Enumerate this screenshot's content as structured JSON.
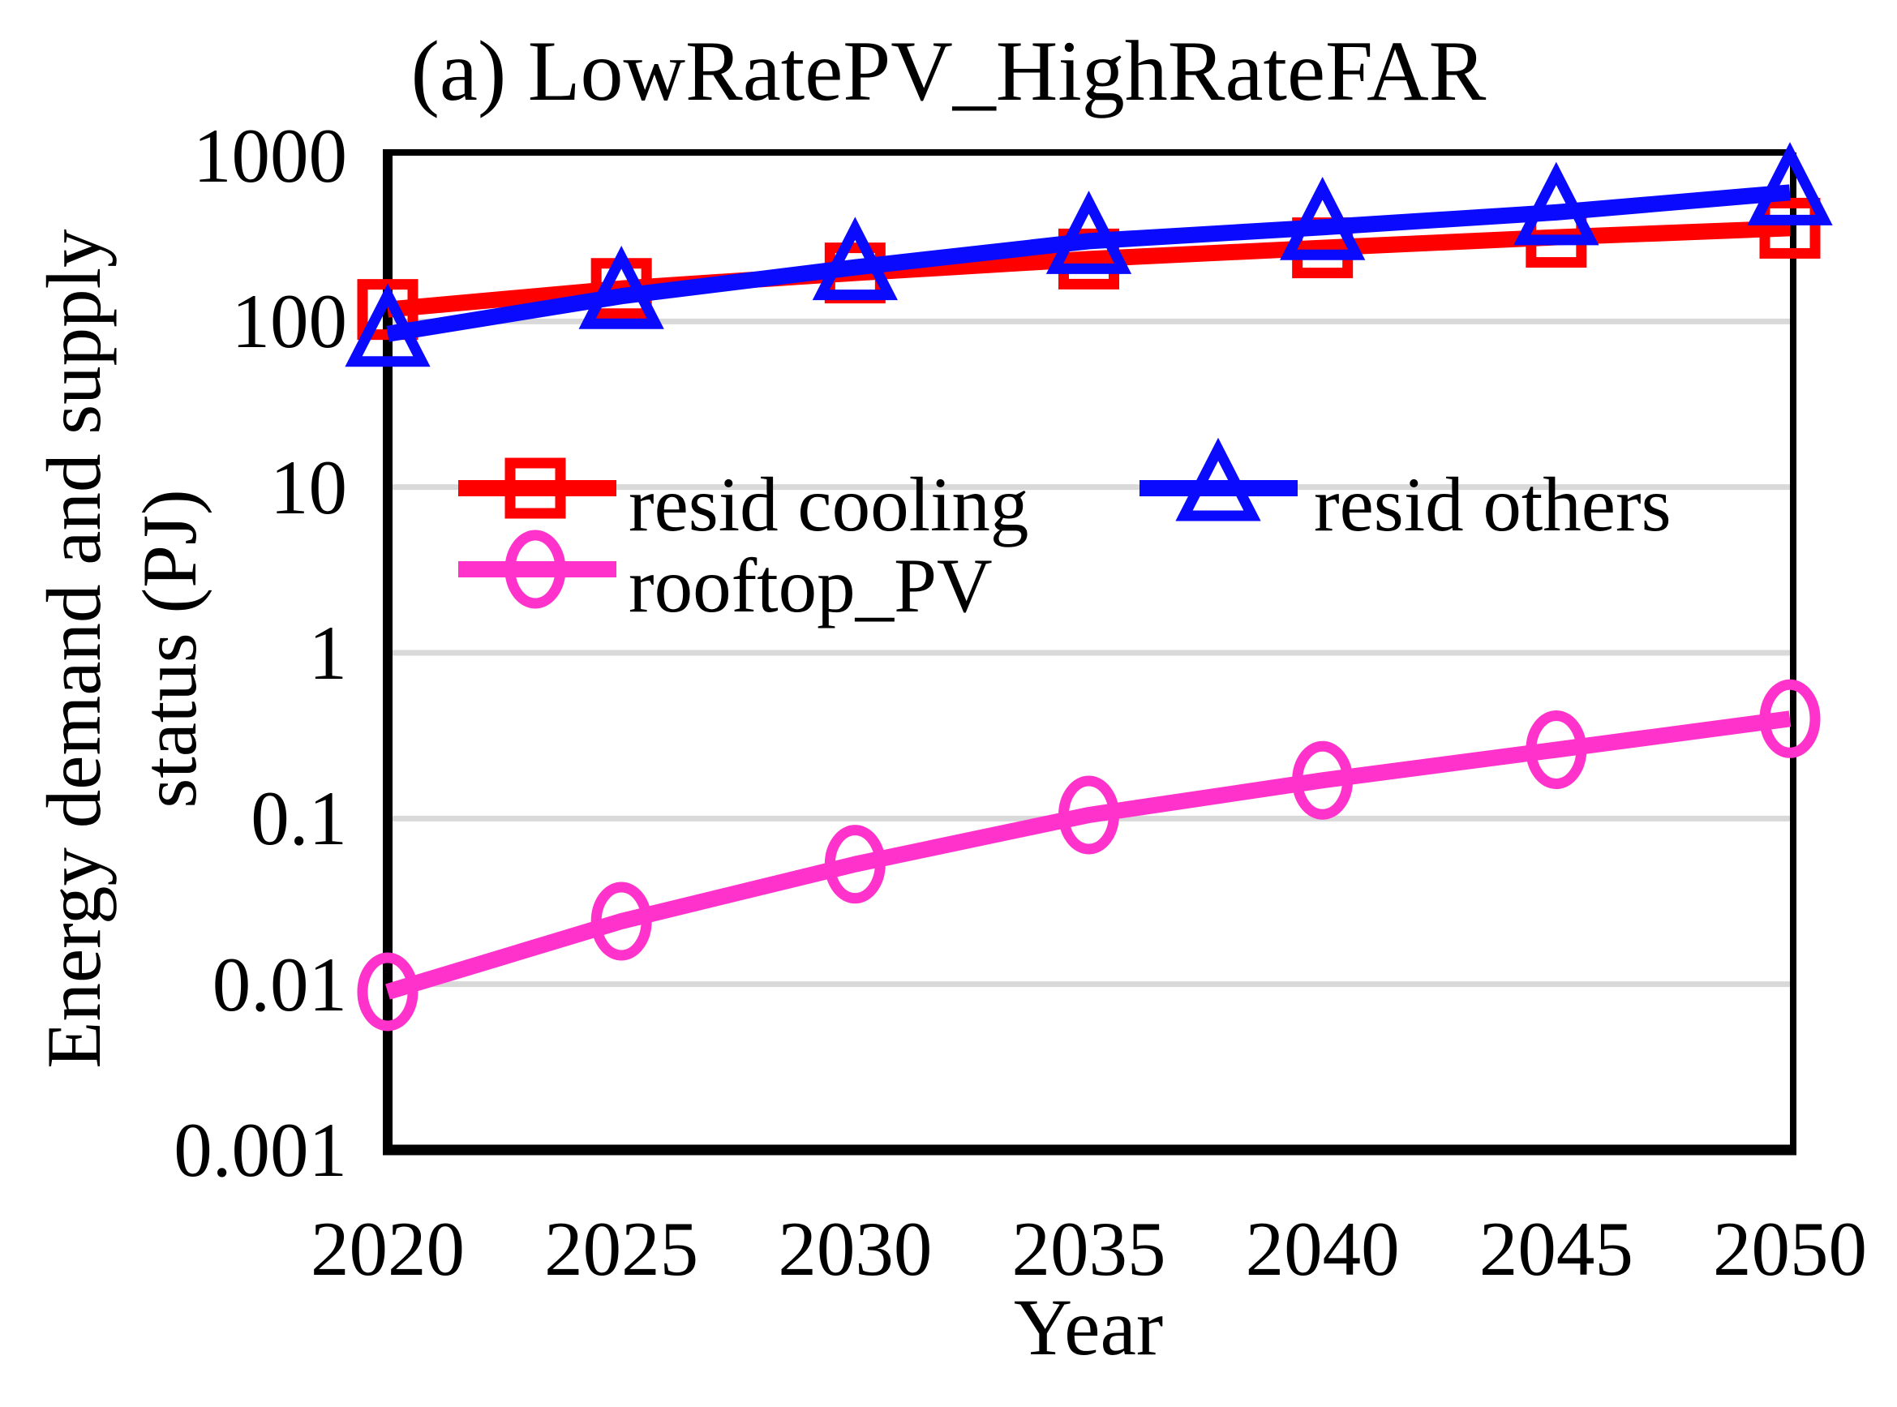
{
  "chart_data": {
    "type": "line",
    "title": "(a) LowRatePV_HighRateFAR",
    "xlabel": "Year",
    "ylabel_lines": [
      "Energy demand and supply",
      "status (PJ)"
    ],
    "y_scale": "log",
    "ylim": [
      0.001,
      1000
    ],
    "y_ticks": [
      "1000",
      "100",
      "10",
      "1",
      "0.1",
      "0.01",
      "0.001"
    ],
    "y_tick_values": [
      1000,
      100,
      10,
      1,
      0.1,
      0.01,
      0.001
    ],
    "gridline_values": [
      100,
      10,
      1,
      0.1,
      0.01
    ],
    "grid_on": true,
    "x_ticks": [
      "2020",
      "2025",
      "2030",
      "2035",
      "2040",
      "2045",
      "2050"
    ],
    "x": [
      2020,
      2025,
      2030,
      2035,
      2040,
      2045,
      2050
    ],
    "legend_position": "inside-top-left",
    "series": [
      {
        "name": "resid cooling",
        "marker": "square",
        "color": "#ff0000",
        "values": [
          118,
          158,
          196,
          238,
          278,
          322,
          365
        ]
      },
      {
        "name": "resid others",
        "marker": "triangle",
        "color": "#0a0aff",
        "values": [
          84,
          142,
          212,
          305,
          370,
          455,
          600
        ]
      },
      {
        "name": "rooftop_PV",
        "marker": "circle",
        "color": "#ff33cc",
        "values": [
          0.009,
          0.024,
          0.053,
          0.105,
          0.17,
          0.26,
          0.4
        ]
      }
    ],
    "colors": {
      "grid": "#d9d9d9",
      "frame": "#000000",
      "text": "#000000",
      "background": "#ffffff"
    }
  }
}
